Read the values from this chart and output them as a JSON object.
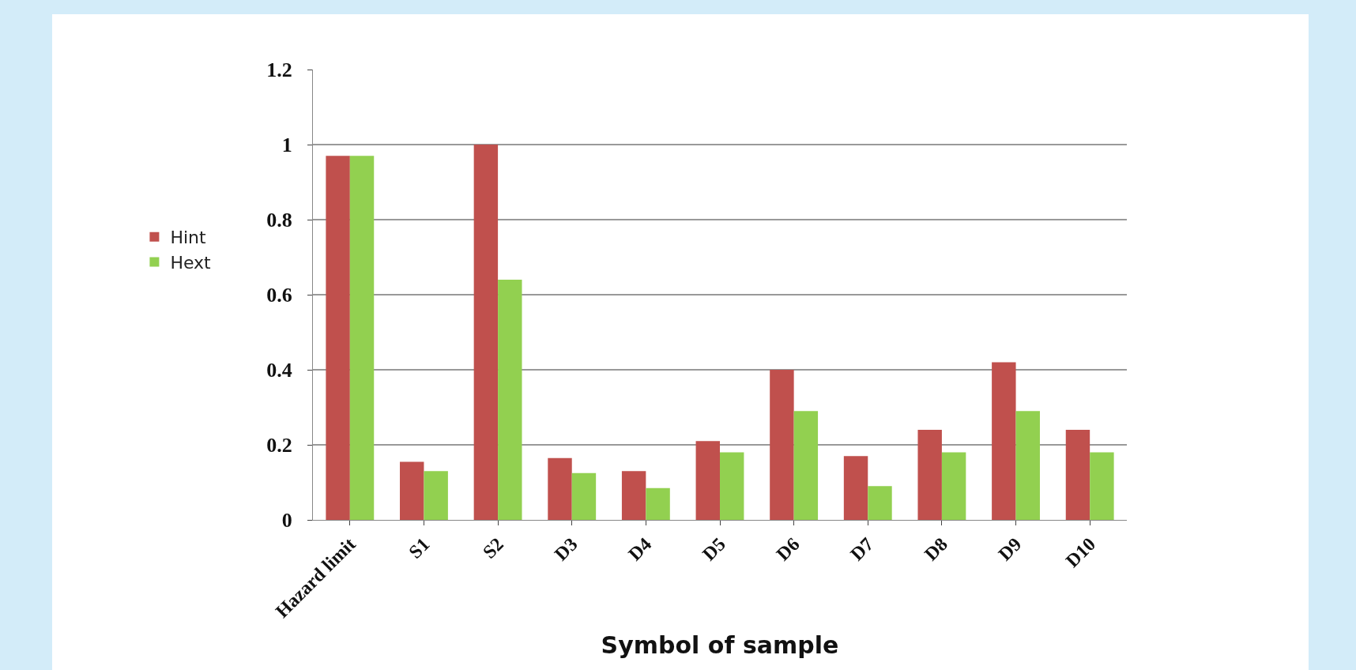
{
  "chart_data": {
    "type": "bar",
    "xlabel": "Symbol of sample",
    "categories": [
      "Hazard limit",
      "S1",
      "S2",
      "D3",
      "D4",
      "D5",
      "D6",
      "D7",
      "D8",
      "D9",
      "D10"
    ],
    "series": [
      {
        "name": "Hint",
        "color": "#c0504d",
        "values": [
          0.97,
          0.155,
          1.0,
          0.165,
          0.13,
          0.21,
          0.4,
          0.17,
          0.24,
          0.42,
          0.24
        ]
      },
      {
        "name": "Hext",
        "color": "#92d050",
        "values": [
          0.97,
          0.13,
          0.64,
          0.125,
          0.085,
          0.18,
          0.29,
          0.09,
          0.18,
          0.29,
          0.18
        ]
      }
    ],
    "ylim": [
      0,
      1.2
    ],
    "yticks": [
      0,
      0.2,
      0.4,
      0.6,
      0.8,
      1,
      1.2
    ],
    "grid": "y",
    "legend": "left"
  }
}
